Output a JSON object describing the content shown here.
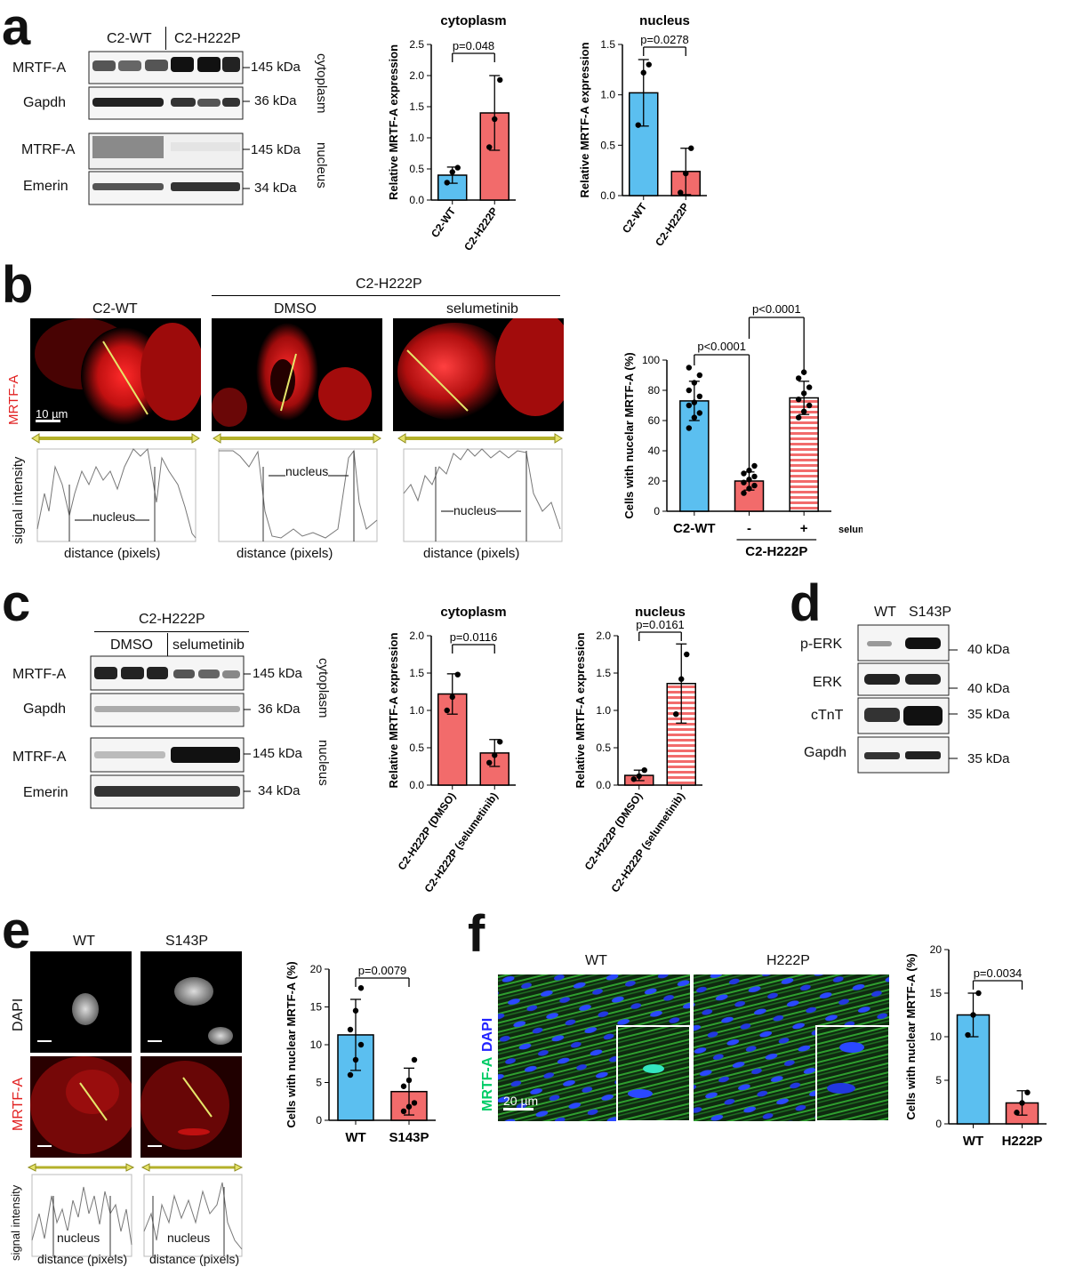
{
  "panels": {
    "a": {
      "letter": "a",
      "groups": [
        "C2-WT",
        "C2-H222P"
      ],
      "rows": [
        {
          "label": "MRTF-A",
          "kda": "145 kDa"
        },
        {
          "label": "Gapdh",
          "kda": "36 kDa"
        },
        {
          "label": "MTRF-A",
          "kda": "145 kDa"
        },
        {
          "label": "Emerin",
          "kda": "34 kDa"
        }
      ],
      "fractions": [
        "cytoplasm",
        "nucleus"
      ]
    },
    "b": {
      "letter": "b",
      "group_header": "C2-H222P",
      "images": [
        "C2-WT",
        "DMSO",
        "selumetinib"
      ],
      "stain_label": "MRTF-A",
      "scale_bar": "10 µm",
      "profile_ylabel": "signal intensity",
      "profile_xlabel": "distance (pixels)",
      "profile_region_label": "nucleus"
    },
    "c": {
      "letter": "c",
      "group_header": "C2-H222P",
      "groups": [
        "DMSO",
        "selumetinib"
      ],
      "rows": [
        {
          "label": "MRTF-A",
          "kda": "145 kDa"
        },
        {
          "label": "Gapdh",
          "kda": "36 kDa"
        },
        {
          "label": "MTRF-A",
          "kda": "145 kDa"
        },
        {
          "label": "Emerin",
          "kda": "34 kDa"
        }
      ],
      "fractions": [
        "cytoplasm",
        "nucleus"
      ]
    },
    "d": {
      "letter": "d",
      "groups": [
        "WT",
        "S143P"
      ],
      "rows": [
        {
          "label": "p-ERK",
          "kda": "40 kDa"
        },
        {
          "label": "ERK",
          "kda": "40 kDa"
        },
        {
          "label": "cTnT",
          "kda": "35 kDa"
        },
        {
          "label": "Gapdh",
          "kda": "35 kDa"
        }
      ]
    },
    "e": {
      "letter": "e",
      "images": [
        "WT",
        "S143P"
      ],
      "stains": [
        "DAPI",
        "MRTF-A"
      ],
      "profile_ylabel": "signal intensity",
      "profile_xlabel": "distance (pixels)",
      "profile_region_label": "nucleus"
    },
    "f": {
      "letter": "f",
      "images": [
        "WT",
        "H222P"
      ],
      "stains": [
        "MRTF-A",
        "DAPI"
      ],
      "scale_bar": "20 µm"
    }
  },
  "chart_data": [
    {
      "id": "a-cyto",
      "type": "bar",
      "title": "cytoplasm",
      "ylabel": "Relative MRTF-A expression",
      "categories": [
        "C2-WT",
        "C2-H222P"
      ],
      "values": [
        0.4,
        1.4
      ],
      "errors": [
        0.13,
        0.6
      ],
      "points": [
        [
          0.28,
          0.45,
          0.52
        ],
        [
          0.85,
          1.3,
          1.93
        ]
      ],
      "ylim": [
        0,
        2.5
      ],
      "yticks": [
        0,
        0.5,
        1.0,
        1.5,
        2.0,
        2.5
      ],
      "pvalue": "p=0.048"
    },
    {
      "id": "a-nuc",
      "type": "bar",
      "title": "nucleus",
      "ylabel": "Relative MRTF-A expression",
      "categories": [
        "C2-WT",
        "C2-H222P"
      ],
      "values": [
        1.02,
        0.24
      ],
      "errors": [
        0.33,
        0.23
      ],
      "points": [
        [
          0.7,
          1.22,
          1.3
        ],
        [
          0.03,
          0.22,
          0.47
        ]
      ],
      "ylim": [
        0,
        1.5
      ],
      "yticks": [
        0,
        0.5,
        1.0,
        1.5
      ],
      "pvalue": "p=0.0278"
    },
    {
      "id": "b-bar",
      "type": "bar",
      "ylabel": "Cells with nucelar MRTF-A (%)",
      "categories": [
        "C2-WT",
        "-",
        "+"
      ],
      "values": [
        73,
        20,
        75
      ],
      "errors": [
        13,
        6,
        11
      ],
      "points": [
        [
          55,
          62,
          65,
          70,
          72,
          76,
          80,
          85,
          90,
          95
        ],
        [
          12,
          15,
          17,
          19,
          21,
          23,
          25,
          27,
          30
        ],
        [
          62,
          66,
          70,
          74,
          78,
          82,
          88,
          92
        ]
      ],
      "ylim": [
        0,
        100
      ],
      "yticks": [
        0,
        20,
        40,
        60,
        80,
        100
      ],
      "pvalues": [
        "p<0.0001",
        "p<0.0001"
      ],
      "extra_labels": [
        "selumetinib",
        "C2-H222P"
      ]
    },
    {
      "id": "c-cyto",
      "type": "bar",
      "title": "cytoplasm",
      "ylabel": "Relative MRTF-A expression",
      "categories": [
        "C2-H222P (DMSO)",
        "C2-H222P (selumetinib)"
      ],
      "values": [
        1.22,
        0.43
      ],
      "errors": [
        0.27,
        0.18
      ],
      "points": [
        [
          1.0,
          1.18,
          1.48
        ],
        [
          0.3,
          0.4,
          0.58
        ]
      ],
      "ylim": [
        0,
        2.0
      ],
      "yticks": [
        0,
        0.5,
        1.0,
        1.5,
        2.0
      ],
      "pvalue": "p=0.0116"
    },
    {
      "id": "c-nuc",
      "type": "bar",
      "title": "nucleus",
      "ylabel": "Relative MRTF-A expression",
      "categories": [
        "C2-H222P (DMSO)",
        "C2-H222P (selumetinib)"
      ],
      "values": [
        0.13,
        1.36
      ],
      "errors": [
        0.07,
        0.53
      ],
      "points": [
        [
          0.08,
          0.12,
          0.2
        ],
        [
          0.95,
          1.42,
          1.75
        ]
      ],
      "ylim": [
        0,
        2.0
      ],
      "yticks": [
        0,
        0.5,
        1.0,
        1.5,
        2.0
      ],
      "pvalue": "p=0.0161"
    },
    {
      "id": "e-bar",
      "type": "bar",
      "ylabel": "Cells with nuclear MRTF-A (%)",
      "categories": [
        "WT",
        "S143P"
      ],
      "values": [
        11.3,
        3.8
      ],
      "errors": [
        4.7,
        3.1
      ],
      "points": [
        [
          6,
          8,
          10,
          12,
          14.5,
          17.5
        ],
        [
          1.2,
          1.8,
          2.3,
          4.5,
          5.3,
          8
        ]
      ],
      "ylim": [
        0,
        20
      ],
      "yticks": [
        0,
        5,
        10,
        15,
        20
      ],
      "pvalue": "p=0.0079"
    },
    {
      "id": "f-bar",
      "type": "bar",
      "ylabel": "Cells with  nuclear MRTF-A (%)",
      "categories": [
        "WT",
        "H222P"
      ],
      "values": [
        12.5,
        2.4
      ],
      "errors": [
        2.5,
        1.4
      ],
      "points": [
        [
          10.2,
          12.5,
          15
        ],
        [
          1.3,
          2.4,
          3.6
        ]
      ],
      "ylim": [
        0,
        20
      ],
      "yticks": [
        0,
        5,
        10,
        15,
        20
      ],
      "pvalue": "p=0.0034"
    }
  ],
  "colors": {
    "blue": "#5bbff0",
    "red": "#f26b6b",
    "red_hatch": "#f26b6b"
  }
}
